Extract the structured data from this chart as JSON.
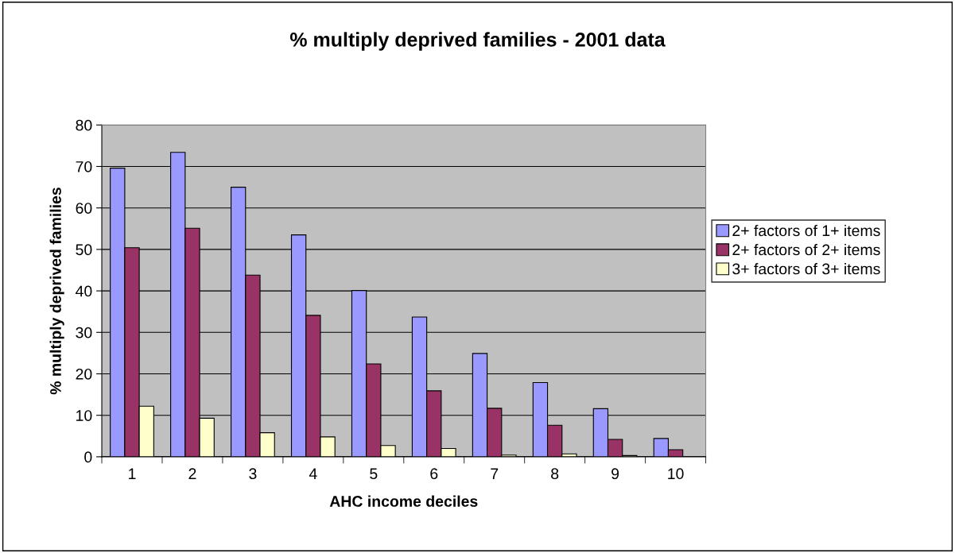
{
  "chart_data": {
    "type": "bar",
    "title": "% multiply deprived families - 2001 data",
    "xlabel": "AHC income deciles",
    "ylabel": "% multiply deprived families",
    "categories": [
      "1",
      "2",
      "3",
      "4",
      "5",
      "6",
      "7",
      "8",
      "9",
      "10"
    ],
    "series": [
      {
        "name": "2+ factors of 1+ items",
        "color": "#9999ff",
        "values": [
          69.6,
          73.4,
          65.0,
          53.5,
          40.1,
          33.7,
          24.9,
          17.9,
          11.6,
          4.4
        ]
      },
      {
        "name": "2+ factors of 2+ items",
        "color": "#993366",
        "values": [
          50.4,
          55.1,
          43.8,
          34.1,
          22.4,
          15.9,
          11.7,
          7.6,
          4.2,
          1.7
        ]
      },
      {
        "name": "3+ factors of 3+ items",
        "color": "#ffffcc",
        "values": [
          12.2,
          9.3,
          5.8,
          4.8,
          2.7,
          2.0,
          0.4,
          0.7,
          0.3,
          null
        ]
      }
    ],
    "ylim": [
      0,
      80
    ],
    "yticks": [
      0,
      10,
      20,
      30,
      40,
      50,
      60,
      70,
      80
    ],
    "grid": "y",
    "legend": "right"
  }
}
